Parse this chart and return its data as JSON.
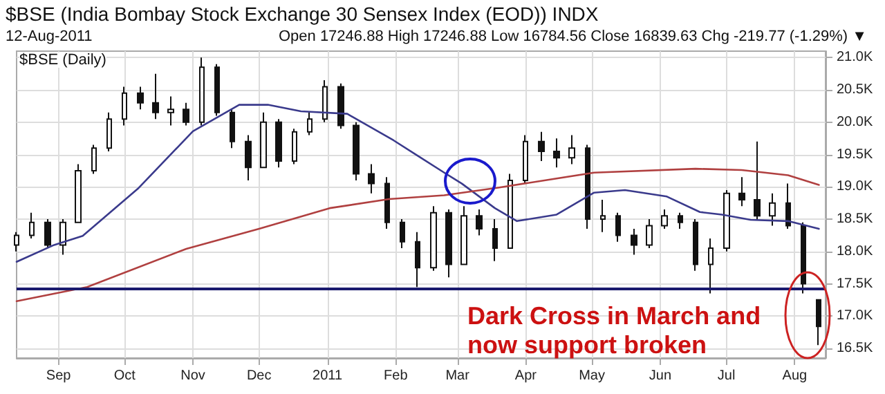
{
  "chart_data": {
    "type": "candlestick",
    "title": "$BSE (India Bombay Stock Exchange 30 Sensex Index (EOD)) INDX",
    "subtitle": "12-Aug-2011",
    "annotations": [
      "Open 17246.88 High 17246.88 Low 16784.56 Close 16839.63 Chg -219.77 (-1.29%) ▼",
      "$BSE (Daily)",
      "Dark Cross in March and now support broken"
    ],
    "xlim": [
      "2010-08-13",
      "2011-08-15"
    ],
    "xticks": [
      {
        "value": "2010-09-01",
        "label": "Sep"
      },
      {
        "value": "2010-10-01",
        "label": "Oct"
      },
      {
        "value": "2010-11-01",
        "label": "Nov"
      },
      {
        "value": "2010-12-01",
        "label": "Dec"
      },
      {
        "value": "2011-01-01",
        "label": "2011"
      },
      {
        "value": "2011-02-01",
        "label": "Feb"
      },
      {
        "value": "2011-03-01",
        "label": "Mar"
      },
      {
        "value": "2011-04-01",
        "label": "Apr"
      },
      {
        "value": "2011-05-01",
        "label": "May"
      },
      {
        "value": "2011-06-01",
        "label": "Jun"
      },
      {
        "value": "2011-07-01",
        "label": "Jul"
      },
      {
        "value": "2011-08-01",
        "label": "Aug"
      }
    ],
    "ylim": [
      16350,
      21100
    ],
    "yticks": [
      {
        "value": 16500,
        "label": "16.5K"
      },
      {
        "value": 17000,
        "label": "17.0K"
      },
      {
        "value": 17500,
        "label": "17.5K"
      },
      {
        "value": 18000,
        "label": "18.0K"
      },
      {
        "value": 18500,
        "label": "18.5K"
      },
      {
        "value": 19000,
        "label": "19.0K"
      },
      {
        "value": 19500,
        "label": "19.5K"
      },
      {
        "value": 20000,
        "label": "20.0K"
      },
      {
        "value": 20500,
        "label": "20.5K"
      },
      {
        "value": 21000,
        "label": "21.0K"
      }
    ],
    "grid": true,
    "ref_lines": [
      {
        "axis": "y",
        "value": 17430,
        "color": "#1a1a6e",
        "line_style": "solid"
      }
    ],
    "series": [
      {
        "color": "#111111",
        "x": [
          "2010-08-13",
          "2010-08-20",
          "2010-08-27",
          "2010-09-03",
          "2010-09-10",
          "2010-09-17",
          "2010-09-24",
          "2010-10-01",
          "2010-10-08",
          "2010-10-15",
          "2010-10-22",
          "2010-10-29",
          "2010-11-05",
          "2010-11-12",
          "2010-11-19",
          "2010-11-26",
          "2010-12-03",
          "2010-12-10",
          "2010-12-17",
          "2010-12-24",
          "2010-12-31",
          "2011-01-07",
          "2011-01-14",
          "2011-01-21",
          "2011-01-28",
          "2011-02-04",
          "2011-02-11",
          "2011-02-18",
          "2011-02-25",
          "2011-03-04",
          "2011-03-11",
          "2011-03-18",
          "2011-03-25",
          "2011-04-01",
          "2011-04-08",
          "2011-04-15",
          "2011-04-22",
          "2011-04-29",
          "2011-05-06",
          "2011-05-13",
          "2011-05-20",
          "2011-05-27",
          "2011-06-03",
          "2011-06-10",
          "2011-06-17",
          "2011-06-24",
          "2011-07-01",
          "2011-07-08",
          "2011-07-15",
          "2011-07-22",
          "2011-07-29",
          "2011-08-05",
          "2011-08-12"
        ],
        "ohlc": [
          [
            18100,
            18300,
            18000,
            18250
          ],
          [
            18250,
            18600,
            18200,
            18450
          ],
          [
            18450,
            18500,
            18050,
            18100
          ],
          [
            18100,
            18500,
            17950,
            18450
          ],
          [
            18450,
            19350,
            18450,
            19250
          ],
          [
            19250,
            19650,
            19200,
            19600
          ],
          [
            19600,
            20150,
            19550,
            20050
          ],
          [
            20050,
            20550,
            19950,
            20450
          ],
          [
            20450,
            20550,
            20200,
            20300
          ],
          [
            20300,
            20750,
            20050,
            20150
          ],
          [
            20150,
            20400,
            19950,
            20200
          ],
          [
            20200,
            20300,
            19950,
            20000
          ],
          [
            20000,
            21000,
            19950,
            20850
          ],
          [
            20850,
            20900,
            20100,
            20150
          ],
          [
            20150,
            20200,
            19600,
            19700
          ],
          [
            19700,
            19800,
            19100,
            19300
          ],
          [
            19300,
            20150,
            19300,
            20000
          ],
          [
            20000,
            20050,
            19300,
            19400
          ],
          [
            19400,
            19900,
            19350,
            19850
          ],
          [
            19850,
            20150,
            19800,
            20050
          ],
          [
            20050,
            20650,
            20000,
            20550
          ],
          [
            20550,
            20600,
            19900,
            19950
          ],
          [
            19950,
            20000,
            19100,
            19200
          ],
          [
            19200,
            19350,
            18900,
            19050
          ],
          [
            19050,
            19150,
            18350,
            18450
          ],
          [
            18450,
            18500,
            18050,
            18150
          ],
          [
            18150,
            18300,
            17450,
            17750
          ],
          [
            17750,
            18700,
            17700,
            18600
          ],
          [
            18600,
            18650,
            17600,
            17800
          ],
          [
            17800,
            18700,
            17800,
            18550
          ],
          [
            18550,
            18650,
            18250,
            18350
          ],
          [
            18350,
            18500,
            17850,
            18050
          ],
          [
            18050,
            19200,
            18050,
            19100
          ],
          [
            19100,
            19800,
            19050,
            19700
          ],
          [
            19700,
            19850,
            19400,
            19550
          ],
          [
            19550,
            19750,
            19300,
            19450
          ],
          [
            19450,
            19800,
            19350,
            19600
          ],
          [
            19600,
            19650,
            18350,
            18500
          ],
          [
            18500,
            18800,
            18300,
            18550
          ],
          [
            18550,
            18600,
            18150,
            18250
          ],
          [
            18250,
            18350,
            17950,
            18100
          ],
          [
            18100,
            18500,
            18050,
            18400
          ],
          [
            18400,
            18650,
            18350,
            18550
          ],
          [
            18550,
            18600,
            18350,
            18450
          ],
          [
            18450,
            18500,
            17700,
            17800
          ],
          [
            17800,
            18200,
            17350,
            18050
          ],
          [
            18050,
            18950,
            18000,
            18900
          ],
          [
            18900,
            19150,
            18700,
            18800
          ],
          [
            18800,
            19700,
            18500,
            18550
          ],
          [
            18550,
            18900,
            18400,
            18750
          ],
          [
            18750,
            19050,
            18350,
            18400
          ],
          [
            18400,
            18450,
            17350,
            17500
          ],
          [
            17250,
            17250,
            16550,
            16840
          ]
        ]
      },
      {
        "type": "line",
        "color": "#3a3a8c",
        "marker": "none",
        "line_style": "solid",
        "x": [
          "2010-08-13",
          "2010-08-30",
          "2010-09-12",
          "2010-10-07",
          "2010-11-01",
          "2010-11-22",
          "2010-12-05",
          "2010-12-20",
          "2011-01-10",
          "2011-01-31",
          "2011-02-11",
          "2011-02-23",
          "2011-03-03",
          "2011-03-18",
          "2011-03-28",
          "2011-04-15",
          "2011-05-02",
          "2011-05-16",
          "2011-06-04",
          "2011-06-19",
          "2011-06-29",
          "2011-07-12",
          "2011-07-29",
          "2011-08-12"
        ],
        "values": [
          17840,
          18100,
          18240,
          18970,
          19860,
          20270,
          20270,
          20170,
          20130,
          19720,
          19480,
          19220,
          19050,
          18670,
          18470,
          18570,
          18910,
          18950,
          18850,
          18610,
          18570,
          18490,
          18470,
          18350
        ]
      },
      {
        "type": "line",
        "color": "#b04040",
        "marker": "none",
        "line_style": "solid",
        "x": [
          "2010-08-13",
          "2010-09-14",
          "2010-10-29",
          "2010-12-01",
          "2011-01-02",
          "2011-01-29",
          "2011-02-23",
          "2011-03-20",
          "2011-05-02",
          "2011-06-17",
          "2011-07-08",
          "2011-07-29",
          "2011-08-12"
        ],
        "values": [
          17230,
          17450,
          18040,
          18350,
          18670,
          18810,
          18870,
          18990,
          19220,
          19280,
          19260,
          19180,
          19030
        ]
      }
    ]
  }
}
